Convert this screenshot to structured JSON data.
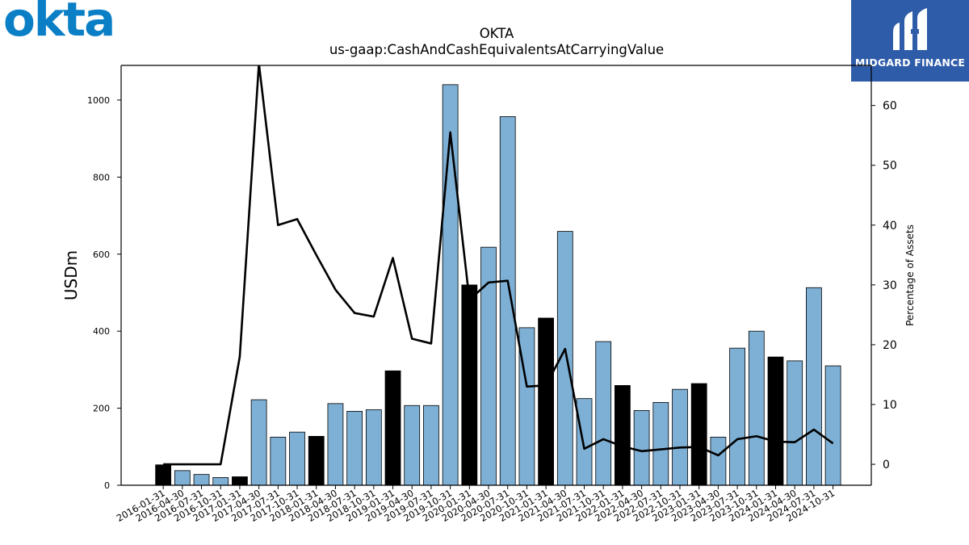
{
  "brand": {
    "left_logo": "okta",
    "right_logo": "MIDGARD FINANCE"
  },
  "chart_data": {
    "type": "bar",
    "title": "OKTA",
    "subtitle": "us-gaap:CashAndCashEquivalentsAtCarryingValue",
    "ylabel": "USDm",
    "y2label": "Percentage of Assets",
    "ylim": [
      0,
      1090
    ],
    "y2lim": [
      -3.5,
      66.7
    ],
    "yticks": [
      0,
      200,
      400,
      600,
      800,
      1000
    ],
    "y2ticks": [
      0,
      10,
      20,
      30,
      40,
      50,
      60
    ],
    "categories": [
      "2016-01-31",
      "2016-04-30",
      "2016-07-31",
      "2016-10-31",
      "2017-01-31",
      "2017-04-30",
      "2017-07-31",
      "2017-10-31",
      "2018-01-31",
      "2018-04-30",
      "2018-07-31",
      "2018-10-31",
      "2019-01-31",
      "2019-04-30",
      "2019-07-31",
      "2019-10-31",
      "2020-01-31",
      "2020-04-30",
      "2020-07-31",
      "2020-10-31",
      "2021-01-31",
      "2021-04-30",
      "2021-07-31",
      "2021-10-31",
      "2022-01-31",
      "2022-04-30",
      "2022-07-31",
      "2022-10-31",
      "2023-01-31",
      "2023-04-30",
      "2023-07-31",
      "2023-10-31",
      "2024-01-31",
      "2024-04-30",
      "2024-07-31",
      "2024-10-31"
    ],
    "series": [
      {
        "kind": "bar",
        "values": [
          53,
          38,
          28,
          20,
          22,
          222,
          125,
          138,
          127,
          212,
          192,
          196,
          297,
          207,
          207,
          1040,
          520,
          618,
          957,
          409,
          434,
          659,
          225,
          373,
          259,
          194,
          215,
          249,
          264,
          125,
          356,
          400,
          333,
          323,
          513,
          310
        ],
        "annual_flags": [
          1,
          0,
          0,
          0,
          1,
          0,
          0,
          0,
          1,
          0,
          0,
          0,
          1,
          0,
          0,
          0,
          1,
          0,
          0,
          0,
          1,
          0,
          0,
          0,
          1,
          0,
          0,
          0,
          1,
          0,
          0,
          0,
          1,
          0,
          0,
          0
        ]
      },
      {
        "kind": "line",
        "axis": "right",
        "values": [
          0,
          0,
          0,
          0,
          18,
          67,
          40,
          41,
          35,
          29.2,
          25.3,
          24.7,
          34.5,
          21,
          20.2,
          55.5,
          27.5,
          30.4,
          30.7,
          13,
          13.2,
          19.3,
          2.6,
          4.2,
          3,
          2.2,
          2.5,
          2.8,
          2.9,
          1.5,
          4.2,
          4.7,
          3.8,
          3.7,
          5.8,
          3.5
        ]
      }
    ],
    "colors": {
      "bar": "#7eb0d5",
      "bar_annual": "#000000",
      "line": "#000000"
    }
  }
}
